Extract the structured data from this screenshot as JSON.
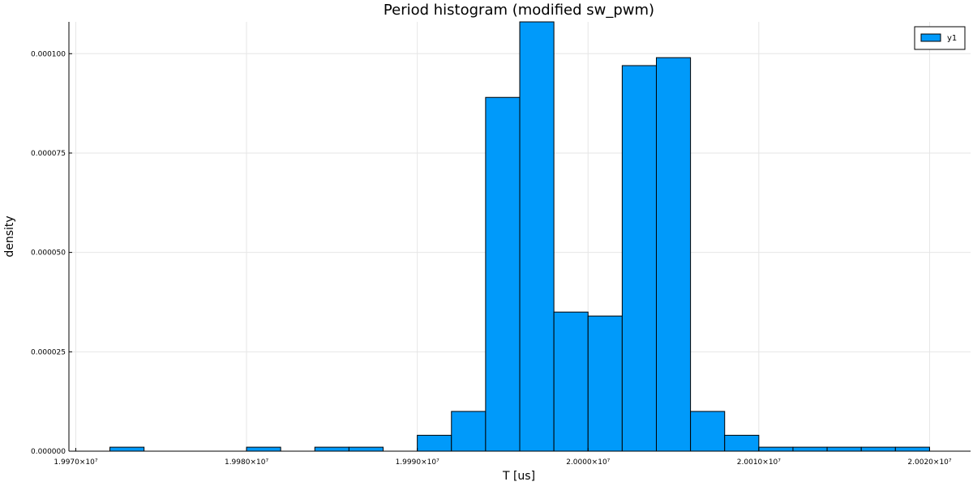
{
  "chart_data": {
    "type": "bar",
    "title": "Period histogram (modified sw_pwm)",
    "xlabel": "T [us]",
    "ylabel": "density",
    "xlim": [
      19969600,
      20022400
    ],
    "ylim": [
      0,
      0.000108
    ],
    "grid": true,
    "legend_position": "top-right",
    "x_ticks": [
      {
        "value": 19970000,
        "label": "1.9970×10⁷"
      },
      {
        "value": 19980000,
        "label": "1.9980×10⁷"
      },
      {
        "value": 19990000,
        "label": "1.9990×10⁷"
      },
      {
        "value": 20000000,
        "label": "2.0000×10⁷"
      },
      {
        "value": 20010000,
        "label": "2.0010×10⁷"
      },
      {
        "value": 20020000,
        "label": "2.0020×10⁷"
      }
    ],
    "y_ticks": [
      {
        "value": 0,
        "label": "0.000000"
      },
      {
        "value": 2.5e-05,
        "label": "0.000025"
      },
      {
        "value": 5e-05,
        "label": "0.000050"
      },
      {
        "value": 7.5e-05,
        "label": "0.000075"
      },
      {
        "value": 0.0001,
        "label": "0.000100"
      }
    ],
    "bin_edges": [
      19972000,
      19974000,
      19976000,
      19978000,
      19980000,
      19982000,
      19984000,
      19986000,
      19988000,
      19990000,
      19992000,
      19994000,
      19996000,
      19998000,
      20000000,
      20002000,
      20004000,
      20006000,
      20008000,
      20010000,
      20012000,
      20014000,
      20016000,
      20018000,
      20020000
    ],
    "series": [
      {
        "name": "y1",
        "color": "#009AFA",
        "values": [
          1e-06,
          0,
          0,
          0,
          1e-06,
          0,
          1e-06,
          1e-06,
          0,
          4e-06,
          1e-05,
          8.9e-05,
          0.000108,
          3.5e-05,
          3.4e-05,
          9.7e-05,
          9.9e-05,
          1e-05,
          4e-06,
          1e-06,
          1e-06,
          1e-06,
          1e-06,
          1e-06
        ]
      }
    ]
  }
}
